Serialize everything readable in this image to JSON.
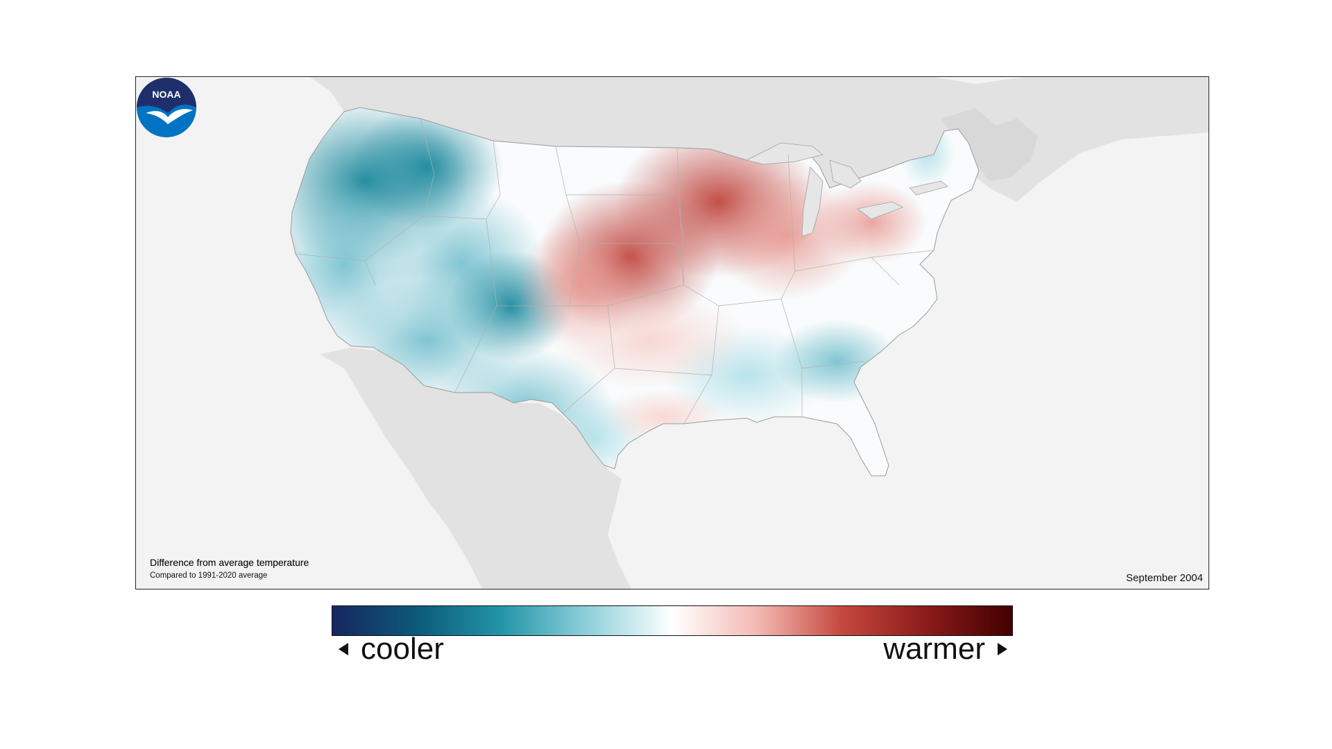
{
  "map": {
    "caption_title": "Difference from average temperature",
    "caption_subtitle": "Compared to 1991-2020 average",
    "date": "September 2004",
    "logo_text": "NOAA"
  },
  "legend": {
    "cooler_label": "cooler",
    "warmer_label": "warmer",
    "colors": [
      "#16265e",
      "#0c5a7a",
      "#2595a8",
      "#8fd0db",
      "#ffffff",
      "#f3b9b3",
      "#c5483f",
      "#8a1b19",
      "#430000"
    ]
  },
  "colors": {
    "land_outside": "#e2e2e2",
    "frame_background": "#f3f3f3",
    "cool_strong": "#1e8a9e",
    "cool_mild": "#9fd8e2",
    "warm_mild": "#f5c6c0",
    "warm_strong": "#c0463f",
    "noaa_blue": "#0074c2",
    "noaa_navy": "#1f2f6b"
  }
}
